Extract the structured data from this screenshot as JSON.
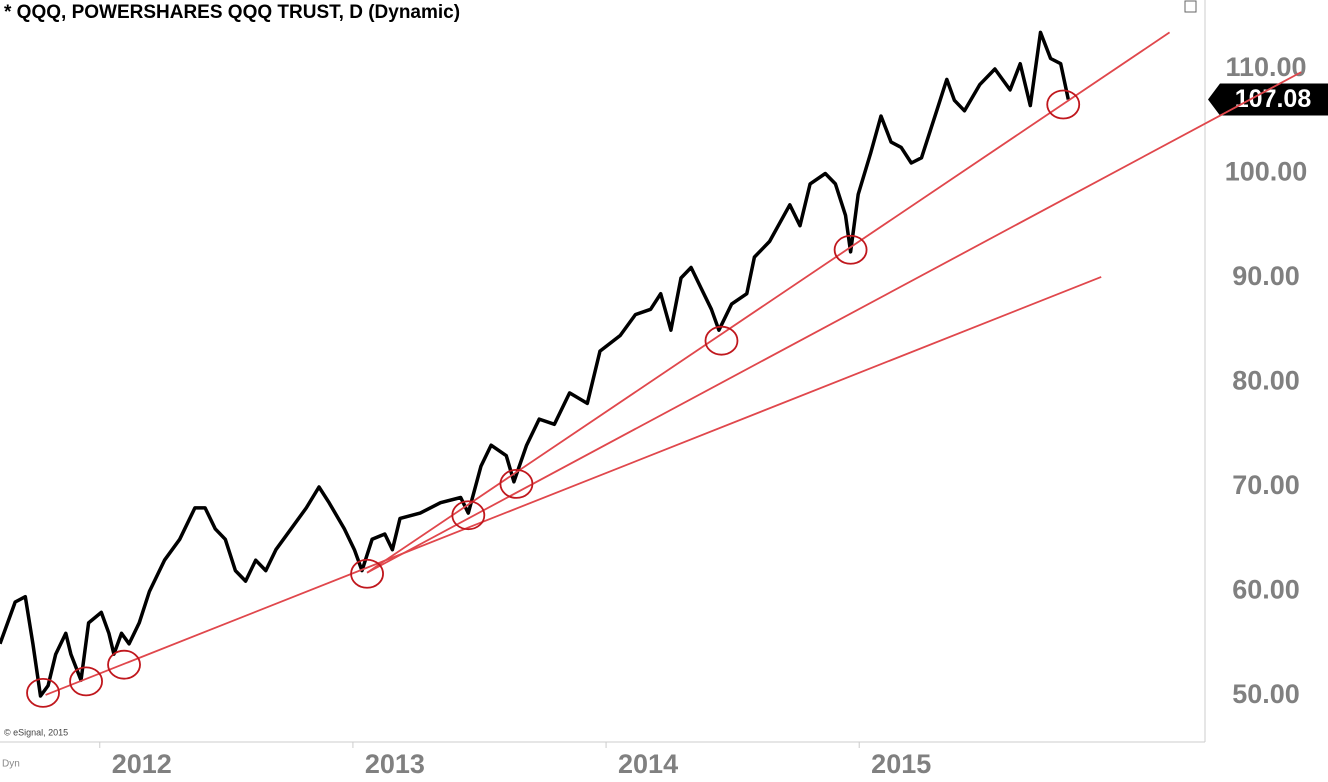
{
  "chart_data": {
    "type": "line",
    "title": "* QQQ, POWERSHARES QQQ TRUST, D (Dynamic)",
    "copyright": "© eSignal, 2015",
    "mode_label": "Dyn",
    "x": [
      2011.44,
      2011.5,
      2011.54,
      2011.57,
      2011.6,
      2011.63,
      2011.66,
      2011.7,
      2011.72,
      2011.76,
      2011.79,
      2011.84,
      2011.87,
      2011.89,
      2011.92,
      2011.95,
      2011.99,
      2012.03,
      2012.09,
      2012.15,
      2012.21,
      2012.25,
      2012.29,
      2012.33,
      2012.37,
      2012.41,
      2012.45,
      2012.49,
      2012.53,
      2012.59,
      2012.65,
      2012.7,
      2012.74,
      2012.8,
      2012.84,
      2012.87,
      2012.91,
      2012.96,
      2012.99,
      2013.02,
      2013.1,
      2013.18,
      2013.26,
      2013.29,
      2013.34,
      2013.38,
      2013.44,
      2013.47,
      2013.52,
      2013.57,
      2013.63,
      2013.69,
      2013.76,
      2013.81,
      2013.89,
      2013.95,
      2014.01,
      2014.05,
      2014.09,
      2014.13,
      2014.17,
      2014.21,
      2014.25,
      2014.28,
      2014.33,
      2014.39,
      2014.42,
      2014.48,
      2014.56,
      2014.6,
      2014.64,
      2014.7,
      2014.74,
      2014.78,
      2014.8,
      2014.83,
      2014.88,
      2014.92,
      2014.96,
      2015.0,
      2015.04,
      2015.08,
      2015.14,
      2015.18,
      2015.21,
      2015.25,
      2015.31,
      2015.37,
      2015.43,
      2015.47,
      2015.51,
      2015.55,
      2015.59,
      2015.63,
      2015.66
    ],
    "series": [
      {
        "name": "QQQ",
        "color": "#000000",
        "values": [
          55,
          59,
          59.5,
          55,
          50,
          51,
          54,
          56,
          54,
          51.5,
          57,
          58,
          56,
          54,
          56,
          55,
          57,
          60,
          63,
          65,
          68,
          68,
          66,
          65,
          62,
          61,
          63,
          62,
          64,
          66,
          68,
          70,
          68.5,
          66,
          64,
          62,
          65,
          65.5,
          64,
          67,
          67.5,
          68.5,
          69,
          67.5,
          72,
          74,
          73,
          70.5,
          74,
          76.5,
          76,
          79,
          78,
          83,
          84.5,
          86.5,
          87,
          88.5,
          85,
          90,
          91,
          89,
          87,
          85,
          87.5,
          88.5,
          92,
          93.5,
          97,
          95,
          99,
          100,
          99,
          96,
          92.5,
          98,
          102,
          105.5,
          103,
          102.5,
          101,
          101.5,
          106,
          109,
          107,
          106,
          108.5,
          110,
          108,
          110.5,
          106.5,
          113.5,
          111,
          110.5,
          107.08
        ]
      }
    ],
    "trendlines": [
      {
        "color": "#e0474c",
        "x": [
          2011.62,
          2015.79
        ],
        "y": [
          50.1,
          90.1
        ]
      },
      {
        "color": "#e0474c",
        "x": [
          2012.89,
          2016.58
        ],
        "y": [
          61.8,
          109.7
        ]
      },
      {
        "color": "#e0474c",
        "x": [
          2012.89,
          2016.06
        ],
        "y": [
          61.8,
          113.5
        ]
      }
    ],
    "highlights": {
      "color": "#c0171d",
      "x": [
        2011.61,
        2011.78,
        2011.93,
        2012.89,
        2013.29,
        2013.48,
        2014.29,
        2014.8,
        2015.64
      ],
      "y": [
        50.3,
        51.4,
        53.0,
        61.7,
        67.3,
        70.3,
        84.0,
        92.7,
        106.6
      ]
    },
    "xlim": [
      2011.44,
      2016.2
    ],
    "ylim": [
      45.6,
      116.6
    ],
    "xticks": [
      2012,
      2013,
      2014,
      2015
    ],
    "yticks": [
      {
        "value": 50,
        "label": "50.00"
      },
      {
        "value": 60,
        "label": "60.00"
      },
      {
        "value": 70,
        "label": "70.00"
      },
      {
        "value": 80,
        "label": "80.00"
      },
      {
        "value": 90,
        "label": "90.00"
      },
      {
        "value": 100,
        "label": "100.00"
      },
      {
        "value": 110,
        "label": "110.00"
      }
    ],
    "grid": false
  }
}
